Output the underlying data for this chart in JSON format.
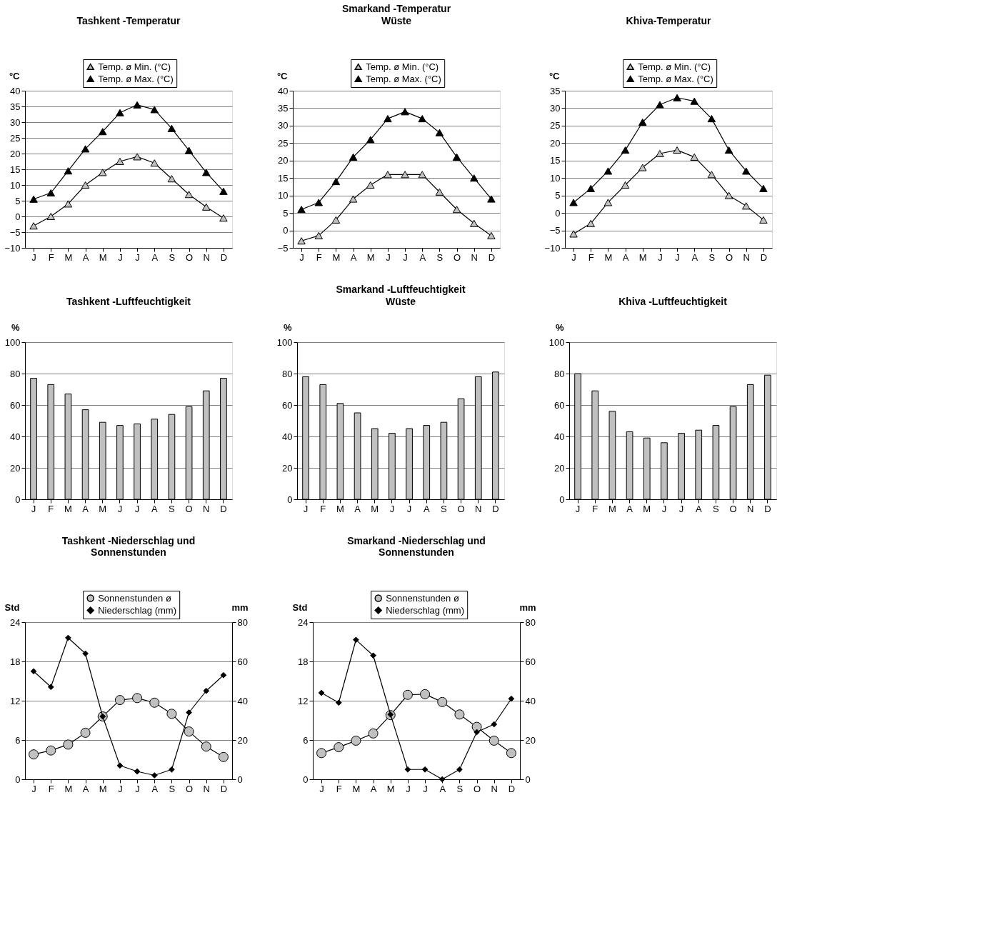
{
  "chart_data": [
    {
      "type": "line",
      "title": "Tashkent -Temperatur",
      "ylabel": "°C",
      "categories": [
        "J",
        "F",
        "M",
        "A",
        "M",
        "J",
        "J",
        "A",
        "S",
        "O",
        "N",
        "D"
      ],
      "ylim": [
        -10,
        40
      ],
      "yticks": [
        -10,
        -5,
        0,
        5,
        10,
        15,
        20,
        25,
        30,
        35,
        40
      ],
      "grid": "y",
      "legend": "top",
      "series": [
        {
          "name": "Temp. ø Min. (°C)",
          "color": "#c0c0c0",
          "marker": "triangle",
          "values": [
            -3,
            0,
            4,
            10,
            14,
            17.5,
            19,
            17,
            12,
            7,
            3,
            -0.5
          ]
        },
        {
          "name": "Temp. ø Max. (°C)",
          "color": "#000000",
          "marker": "triangle",
          "values": [
            5.5,
            7.5,
            14.5,
            21.5,
            27,
            33,
            35.5,
            34,
            28,
            21,
            14,
            8
          ]
        }
      ]
    },
    {
      "type": "line",
      "title": "Smarkand -Temperatur",
      "subtitle": "Wüste",
      "ylabel": "°C",
      "categories": [
        "J",
        "F",
        "M",
        "A",
        "M",
        "J",
        "J",
        "A",
        "S",
        "O",
        "N",
        "D"
      ],
      "ylim": [
        -5,
        40
      ],
      "yticks": [
        -5,
        0,
        5,
        10,
        15,
        20,
        25,
        30,
        35,
        40
      ],
      "grid": "y",
      "legend": "top",
      "series": [
        {
          "name": "Temp. ø Min. (°C)",
          "color": "#c0c0c0",
          "marker": "triangle",
          "values": [
            -3,
            -1.5,
            3,
            9,
            13,
            16,
            16,
            16,
            11,
            6,
            2,
            -1.5
          ]
        },
        {
          "name": "Temp. ø Max. (°C)",
          "color": "#000000",
          "marker": "triangle",
          "values": [
            6,
            8,
            14,
            21,
            26,
            32,
            34,
            32,
            28,
            21,
            15,
            9
          ]
        }
      ]
    },
    {
      "type": "line",
      "title": "Khiva-Temperatur",
      "ylabel": "°C",
      "categories": [
        "J",
        "F",
        "M",
        "A",
        "M",
        "J",
        "J",
        "A",
        "S",
        "O",
        "N",
        "D"
      ],
      "ylim": [
        -10,
        35
      ],
      "yticks": [
        -10,
        -5,
        0,
        5,
        10,
        15,
        20,
        25,
        30,
        35
      ],
      "grid": "y",
      "legend": "top",
      "series": [
        {
          "name": "Temp. ø Min. (°C)",
          "color": "#c0c0c0",
          "marker": "triangle",
          "values": [
            -6,
            -3,
            3,
            8,
            13,
            17,
            18,
            16,
            11,
            5,
            2,
            -2
          ]
        },
        {
          "name": "Temp. ø Max. (°C)",
          "color": "#000000",
          "marker": "triangle",
          "values": [
            3,
            7,
            12,
            18,
            26,
            31,
            33,
            32,
            27,
            18,
            12,
            7
          ]
        }
      ]
    },
    {
      "type": "bar",
      "title": "Tashkent -Luftfeuchtigkeit",
      "ylabel": "%",
      "categories": [
        "J",
        "F",
        "M",
        "A",
        "M",
        "J",
        "J",
        "A",
        "S",
        "O",
        "N",
        "D"
      ],
      "ylim": [
        0,
        100
      ],
      "yticks": [
        0,
        20,
        40,
        60,
        80,
        100
      ],
      "grid": "y",
      "series": [
        {
          "color": "#c0c0c0",
          "values": [
            77,
            73,
            67,
            57,
            49,
            47,
            48,
            51,
            54,
            59,
            69,
            77
          ]
        }
      ]
    },
    {
      "type": "bar",
      "title": "Smarkand -Luftfeuchtigkeit",
      "subtitle": "Wüste",
      "ylabel": "%",
      "categories": [
        "J",
        "F",
        "M",
        "A",
        "M",
        "J",
        "J",
        "A",
        "S",
        "O",
        "N",
        "D"
      ],
      "ylim": [
        0,
        100
      ],
      "yticks": [
        0,
        20,
        40,
        60,
        80,
        100
      ],
      "grid": "y",
      "series": [
        {
          "color": "#c0c0c0",
          "values": [
            78,
            73,
            61,
            55,
            45,
            42,
            45,
            47,
            49,
            64,
            78,
            81
          ]
        }
      ]
    },
    {
      "type": "bar",
      "title": "Khiva -Luftfeuchtigkeit",
      "ylabel": "%",
      "categories": [
        "J",
        "F",
        "M",
        "A",
        "M",
        "J",
        "J",
        "A",
        "S",
        "O",
        "N",
        "D"
      ],
      "ylim": [
        0,
        100
      ],
      "yticks": [
        0,
        20,
        40,
        60,
        80,
        100
      ],
      "grid": "y",
      "series": [
        {
          "color": "#c0c0c0",
          "values": [
            80,
            69,
            56,
            43,
            39,
            36,
            42,
            44,
            47,
            59,
            73,
            79
          ]
        }
      ]
    },
    {
      "type": "line",
      "title": "Tashkent -Niederschlag und Sonnenstunden",
      "ylabel": "Std",
      "y2label": "mm",
      "categories": [
        "J",
        "F",
        "M",
        "A",
        "M",
        "J",
        "J",
        "A",
        "S",
        "O",
        "N",
        "D"
      ],
      "ylim": [
        0,
        24
      ],
      "yticks": [
        0,
        6,
        12,
        18,
        24
      ],
      "y2lim": [
        0,
        80
      ],
      "y2ticks": [
        0,
        20,
        40,
        60,
        80
      ],
      "grid": "y",
      "legend": "top",
      "series": [
        {
          "name": "Sonnenstunden ø",
          "color": "#c0c0c0",
          "marker": "circle",
          "values": [
            3.8,
            4.4,
            5.3,
            7.1,
            9.6,
            12.1,
            12.4,
            11.7,
            10,
            7.3,
            5,
            3.4
          ]
        },
        {
          "name": "Niederschlag (mm)",
          "color": "#000000",
          "marker": "diamond",
          "axis": "y2",
          "values": [
            55,
            47,
            72,
            64,
            32,
            7,
            4,
            2,
            5,
            34,
            45,
            53
          ]
        }
      ]
    },
    {
      "type": "line",
      "title": "Smarkand -Niederschlag und Sonnenstunden",
      "ylabel": "Std",
      "y2label": "mm",
      "categories": [
        "J",
        "F",
        "M",
        "A",
        "M",
        "J",
        "J",
        "A",
        "S",
        "O",
        "N",
        "D"
      ],
      "ylim": [
        0,
        24
      ],
      "yticks": [
        0,
        6,
        12,
        18,
        24
      ],
      "y2lim": [
        0,
        80
      ],
      "y2ticks": [
        0,
        20,
        40,
        60,
        80
      ],
      "grid": "y",
      "legend": "top",
      "series": [
        {
          "name": "Sonnenstunden ø",
          "color": "#c0c0c0",
          "marker": "circle",
          "values": [
            4,
            4.9,
            5.9,
            7,
            9.8,
            12.9,
            13,
            11.8,
            9.9,
            8,
            5.9,
            4
          ]
        },
        {
          "name": "Niederschlag (mm)",
          "color": "#000000",
          "marker": "diamond",
          "axis": "y2",
          "values": [
            44,
            39,
            71,
            63,
            33,
            5,
            5,
            0,
            5,
            24,
            28,
            41
          ]
        }
      ]
    }
  ]
}
